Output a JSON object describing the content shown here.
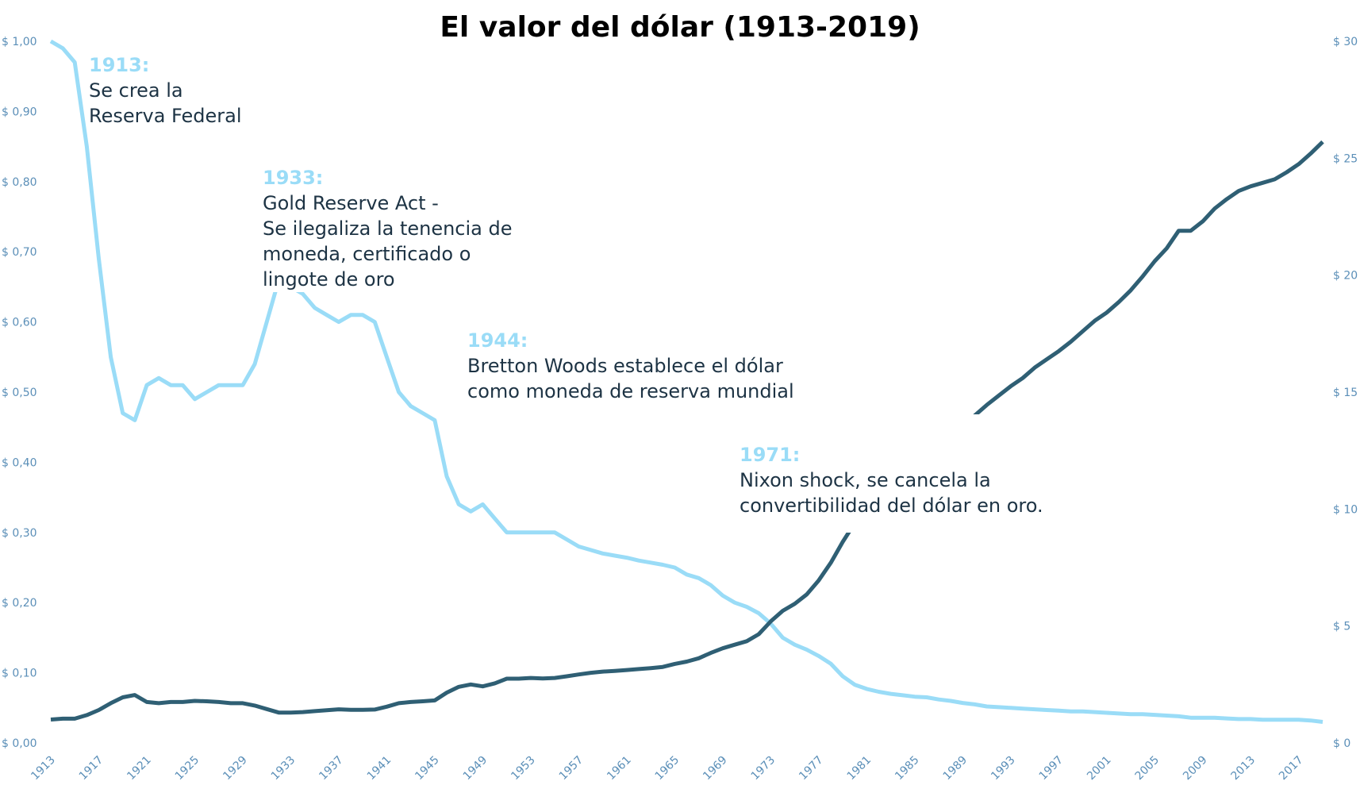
{
  "chart_data": {
    "type": "line",
    "title": "El valor del dólar (1913-2019)",
    "xlabel": "",
    "ylabel": "",
    "x_range": [
      1913,
      2019
    ],
    "x_tick_labels": [
      "1913",
      "1917",
      "1921",
      "1925",
      "1929",
      "1933",
      "1937",
      "1941",
      "1945",
      "1949",
      "1953",
      "1957",
      "1961",
      "1965",
      "1969",
      "1973",
      "1977",
      "1981",
      "1985",
      "1989",
      "1993",
      "1997",
      "2001",
      "2005",
      "2009",
      "2013",
      "2017"
    ],
    "y_left": {
      "range": [
        0,
        1
      ],
      "tick_labels": [
        "$ 0,00",
        "$ 0,10",
        "$ 0,20",
        "$ 0,30",
        "$ 0,40",
        "$ 0,50",
        "$ 0,60",
        "$ 0,70",
        "$ 0,80",
        "$ 0,90",
        "$ 1,00"
      ]
    },
    "y_right": {
      "range": [
        0,
        30
      ],
      "tick_labels": [
        "$ 0",
        "$ 5",
        "$ 10",
        "$ 15",
        "$ 20",
        "$ 25",
        "$ 30"
      ]
    },
    "grid": false,
    "legend": "none",
    "series": [
      {
        "axis": "left",
        "color": "#9adcf7",
        "values": [
          1.0,
          0.99,
          0.97,
          0.85,
          0.69,
          0.55,
          0.47,
          0.46,
          0.51,
          0.52,
          0.51,
          0.51,
          0.49,
          0.5,
          0.51,
          0.51,
          0.51,
          0.54,
          0.6,
          0.66,
          0.65,
          0.64,
          0.62,
          0.61,
          0.6,
          0.61,
          0.61,
          0.6,
          0.55,
          0.5,
          0.48,
          0.47,
          0.46,
          0.38,
          0.34,
          0.33,
          0.34,
          0.32,
          0.3,
          0.3,
          0.3,
          0.3,
          0.3,
          0.29,
          0.28,
          0.275,
          0.27,
          0.267,
          0.264,
          0.26,
          0.257,
          0.254,
          0.25,
          0.24,
          0.235,
          0.225,
          0.21,
          0.2,
          0.194,
          0.185,
          0.17,
          0.15,
          0.14,
          0.133,
          0.124,
          0.113,
          0.095,
          0.083,
          0.077,
          0.073,
          0.07,
          0.068,
          0.066,
          0.065,
          0.062,
          0.06,
          0.057,
          0.055,
          0.052,
          0.051,
          0.05,
          0.049,
          0.048,
          0.047,
          0.046,
          0.045,
          0.045,
          0.044,
          0.043,
          0.042,
          0.041,
          0.041,
          0.04,
          0.039,
          0.038,
          0.036,
          0.036,
          0.036,
          0.035,
          0.034,
          0.034,
          0.033,
          0.033,
          0.033,
          0.033,
          0.032,
          0.03
        ]
      },
      {
        "axis": "right",
        "color": "#2f5f74",
        "values": [
          1.0,
          1.04,
          1.04,
          1.19,
          1.41,
          1.7,
          1.95,
          2.05,
          1.75,
          1.7,
          1.75,
          1.75,
          1.8,
          1.78,
          1.75,
          1.7,
          1.7,
          1.6,
          1.45,
          1.3,
          1.3,
          1.32,
          1.36,
          1.4,
          1.44,
          1.42,
          1.42,
          1.43,
          1.55,
          1.7,
          1.75,
          1.78,
          1.82,
          2.15,
          2.4,
          2.5,
          2.42,
          2.55,
          2.75,
          2.75,
          2.78,
          2.76,
          2.78,
          2.85,
          2.93,
          3.0,
          3.05,
          3.08,
          3.12,
          3.16,
          3.2,
          3.25,
          3.38,
          3.48,
          3.62,
          3.85,
          4.05,
          4.2,
          4.35,
          4.65,
          5.2,
          5.65,
          5.95,
          6.35,
          6.95,
          7.7,
          8.6,
          9.4,
          9.85,
          10.25,
          10.7,
          11.1,
          11.25,
          11.7,
          12.2,
          12.8,
          13.4,
          14.0,
          14.45,
          14.85,
          15.25,
          15.6,
          16.05,
          16.4,
          16.75,
          17.15,
          17.6,
          18.05,
          18.4,
          18.85,
          19.35,
          19.95,
          20.6,
          21.15,
          21.9,
          21.9,
          22.3,
          22.85,
          23.25,
          23.6,
          23.8,
          23.95,
          24.1,
          24.4,
          24.75,
          25.2,
          25.7
        ]
      }
    ],
    "annotations": [
      {
        "year": "1913:",
        "text": "Se crea la\nReserva Federal"
      },
      {
        "year": "1933:",
        "text": "Gold Reserve Act -\nSe ilegaliza la tenencia de\nmoneda, certificado o\nlingote de oro"
      },
      {
        "year": "1944:",
        "text": "Bretton Woods establece el dólar\ncomo moneda de reserva mundial"
      },
      {
        "year": "1971:",
        "text": "Nixon shock, se cancela la\nconvertibilidad del dólar en oro."
      }
    ]
  }
}
